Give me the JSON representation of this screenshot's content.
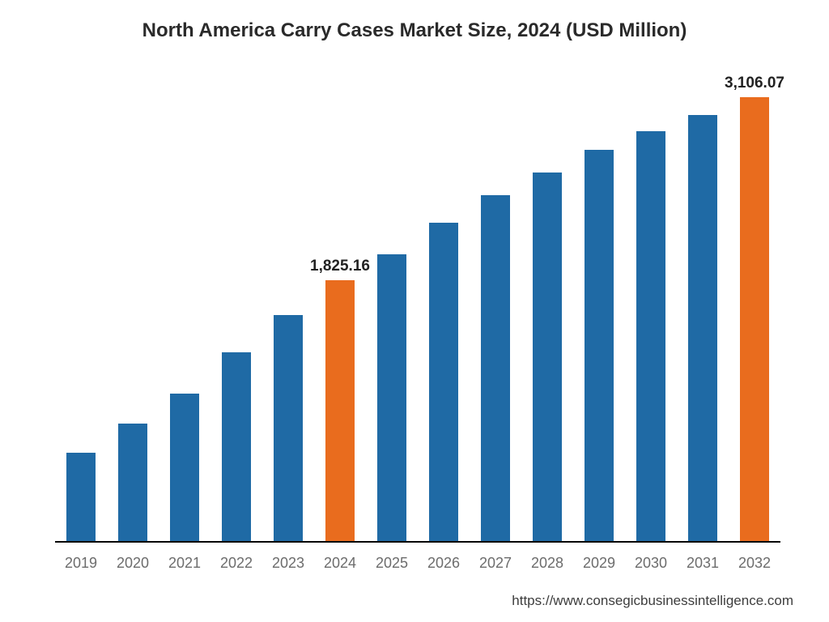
{
  "chart": {
    "type": "bar",
    "title": "North America Carry Cases Market Size, 2024 (USD Million)",
    "title_fontsize": 24,
    "title_color": "#2a2a2a",
    "background_color": "#ffffff",
    "axis_color": "#000000",
    "x_categories": [
      "2019",
      "2020",
      "2021",
      "2022",
      "2023",
      "2024",
      "2025",
      "2026",
      "2027",
      "2028",
      "2029",
      "2030",
      "2031",
      "2032"
    ],
    "x_label_fontsize": 18,
    "x_label_color": "#6c6c6c",
    "ylim": [
      0,
      3300
    ],
    "bar_width_pct": 56,
    "series": {
      "values": [
        620,
        820,
        1030,
        1320,
        1580,
        1825.16,
        2010,
        2230,
        2420,
        2580,
        2740,
        2870,
        2980,
        3106.07
      ],
      "colors": [
        "#1f6aa5",
        "#1f6aa5",
        "#1f6aa5",
        "#1f6aa5",
        "#1f6aa5",
        "#e96c1e",
        "#1f6aa5",
        "#1f6aa5",
        "#1f6aa5",
        "#1f6aa5",
        "#1f6aa5",
        "#1f6aa5",
        "#1f6aa5",
        "#e96c1e"
      ],
      "value_labels": [
        "",
        "",
        "",
        "",
        "",
        "1,825.16",
        "",
        "",
        "",
        "",
        "",
        "",
        "",
        "3,106.07"
      ]
    },
    "value_label_fontsize": 19,
    "value_label_color": "#222222"
  },
  "source_url": "https://www.consegicbusinessintelligence.com",
  "source_fontsize": 17,
  "source_color": "#3d3d3d"
}
